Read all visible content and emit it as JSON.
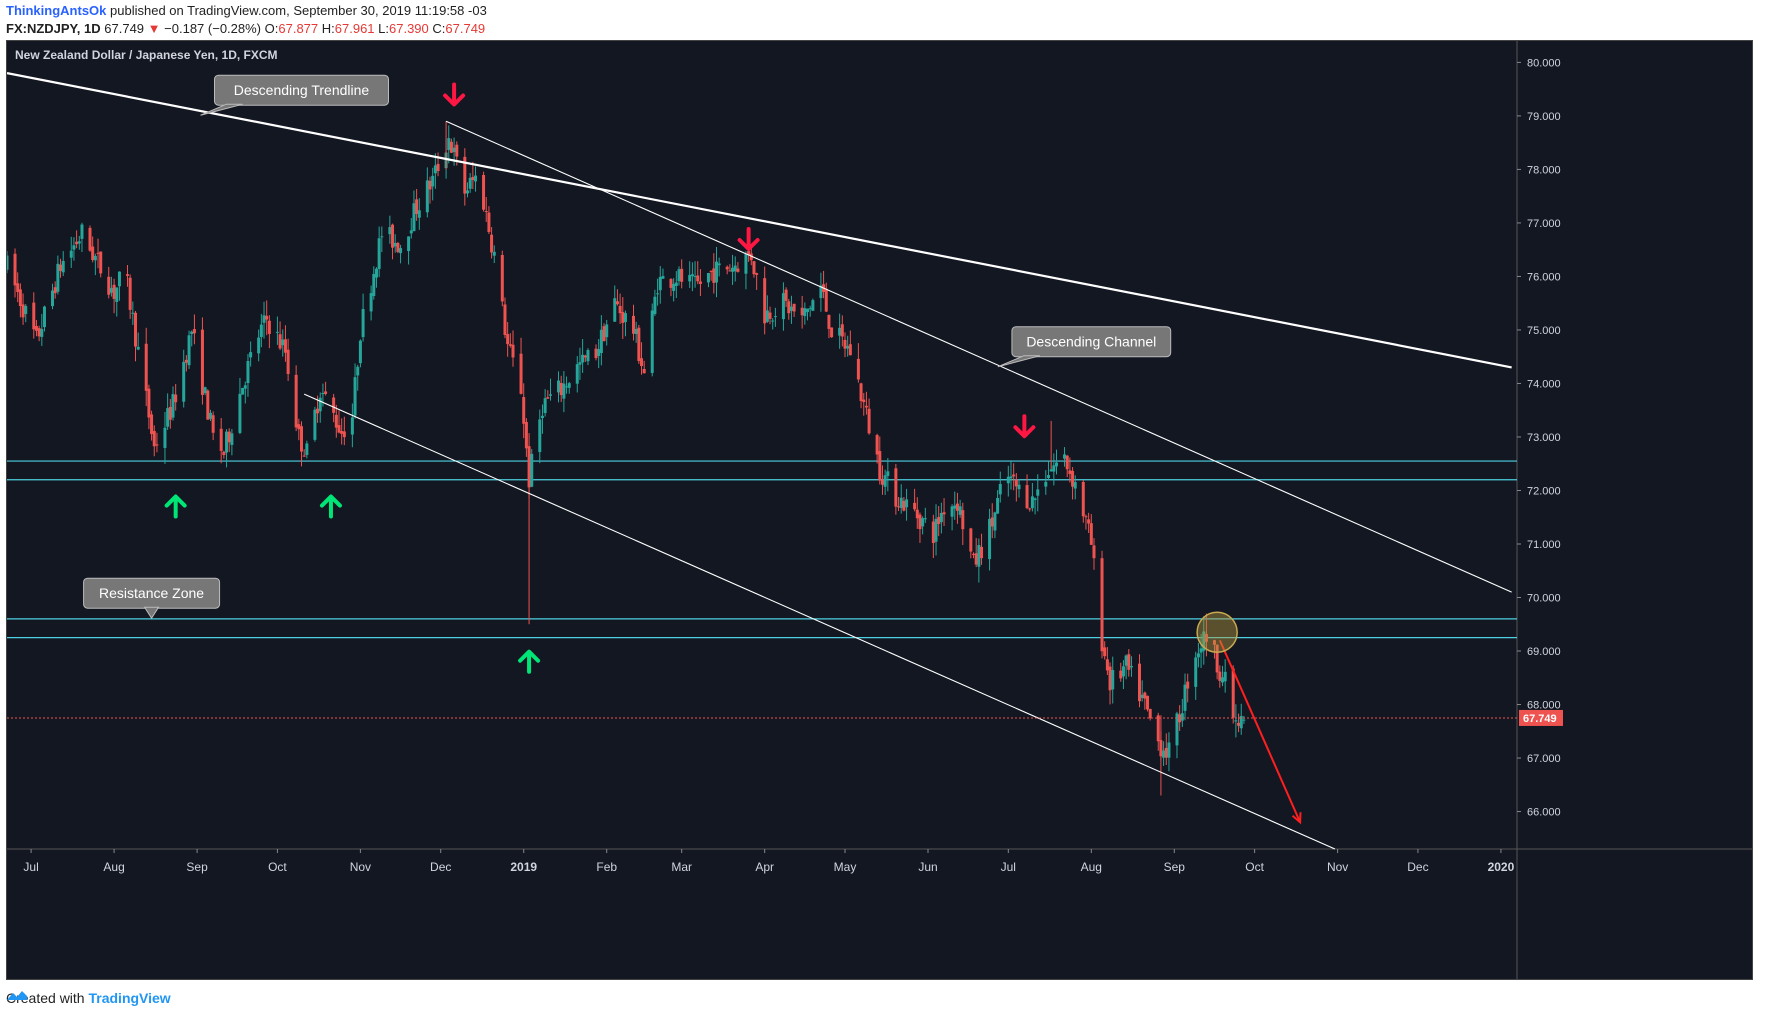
{
  "header": {
    "author": "ThinkingAntsOk",
    "published": "published on TradingView.com, September 30, 2019 11:19:58 -03",
    "symbol": "FX:NZDJPY, 1D",
    "last": "67.749",
    "change_arrow": "▼",
    "change": "−0.187 (−0.28%)",
    "o_label": "O:",
    "o": "67.877",
    "h_label": "H:",
    "h": "67.961",
    "l_label": "L:",
    "l": "67.390",
    "c_label": "C:",
    "c": "67.749"
  },
  "footer": {
    "created": "Created with",
    "brand": "TradingView",
    "logo_icon": "tradingview-logo-icon"
  },
  "colors": {
    "bg": "#131722",
    "up": "#26a69a",
    "down": "#ef5350",
    "zone": "#4dd0e1",
    "arrow_up": "#00e676",
    "arrow_down": "#ff1744",
    "price_tag": "#ef5350"
  },
  "chart_data": {
    "type": "candlestick",
    "title": "New Zealand Dollar / Japanese Yen, 1D, FXCM",
    "xlabel": "",
    "ylabel": "",
    "ylim": [
      65.3,
      80.4
    ],
    "xlim": [
      "2018-06-22",
      "2020-01-07"
    ],
    "y_ticks": [
      "80.000",
      "79.000",
      "78.000",
      "77.000",
      "76.000",
      "75.000",
      "74.000",
      "73.000",
      "72.000",
      "71.000",
      "70.000",
      "69.000",
      "68.000",
      "67.000",
      "66.000"
    ],
    "x_ticks": [
      {
        "date": "2018-07-01",
        "label": "Jul"
      },
      {
        "date": "2018-08-01",
        "label": "Aug"
      },
      {
        "date": "2018-09-01",
        "label": "Sep"
      },
      {
        "date": "2018-10-01",
        "label": "Oct"
      },
      {
        "date": "2018-11-01",
        "label": "Nov"
      },
      {
        "date": "2018-12-01",
        "label": "Dec"
      },
      {
        "date": "2019-01-01",
        "label": "2019"
      },
      {
        "date": "2019-02-01",
        "label": "Feb"
      },
      {
        "date": "2019-03-01",
        "label": "Mar"
      },
      {
        "date": "2019-04-01",
        "label": "Apr"
      },
      {
        "date": "2019-05-01",
        "label": "May"
      },
      {
        "date": "2019-06-01",
        "label": "Jun"
      },
      {
        "date": "2019-07-01",
        "label": "Jul"
      },
      {
        "date": "2019-08-01",
        "label": "Aug"
      },
      {
        "date": "2019-09-01",
        "label": "Sep"
      },
      {
        "date": "2019-10-01",
        "label": "Oct"
      },
      {
        "date": "2019-11-01",
        "label": "Nov"
      },
      {
        "date": "2019-12-01",
        "label": "Dec"
      },
      {
        "date": "2020-01-01",
        "label": "2020"
      }
    ],
    "last_price": {
      "value": 67.749,
      "label": "67.749"
    },
    "price_path": [
      [
        "2018-06-22",
        76.2
      ],
      [
        "2018-07-03",
        74.8
      ],
      [
        "2018-07-12",
        76.2
      ],
      [
        "2018-07-20",
        76.8
      ],
      [
        "2018-08-01",
        75.7
      ],
      [
        "2018-08-05",
        76.1
      ],
      [
        "2018-08-16",
        72.8
      ],
      [
        "2018-08-23",
        73.6
      ],
      [
        "2018-08-30",
        75.0
      ],
      [
        "2018-09-07",
        73.0
      ],
      [
        "2018-09-11",
        72.7
      ],
      [
        "2018-09-18",
        74.0
      ],
      [
        "2018-09-24",
        74.9
      ],
      [
        "2018-09-27",
        75.2
      ],
      [
        "2018-10-04",
        74.6
      ],
      [
        "2018-10-09",
        73.0
      ],
      [
        "2018-10-12",
        72.7
      ],
      [
        "2018-10-17",
        73.9
      ],
      [
        "2018-10-25",
        73.1
      ],
      [
        "2018-10-29",
        73.4
      ],
      [
        "2018-11-01",
        75.0
      ],
      [
        "2018-11-09",
        76.8
      ],
      [
        "2018-11-16",
        76.6
      ],
      [
        "2018-11-22",
        77.3
      ],
      [
        "2018-11-28",
        77.8
      ],
      [
        "2018-12-04",
        78.6
      ],
      [
        "2018-12-10",
        77.6
      ],
      [
        "2018-12-15",
        77.9
      ],
      [
        "2018-12-21",
        76.4
      ],
      [
        "2018-12-26",
        74.7
      ],
      [
        "2018-12-31",
        73.9
      ],
      [
        "2019-01-03",
        72.2
      ],
      [
        "2019-01-08",
        73.6
      ],
      [
        "2019-01-15",
        73.9
      ],
      [
        "2019-01-21",
        74.3
      ],
      [
        "2019-01-28",
        74.6
      ],
      [
        "2019-02-04",
        75.5
      ],
      [
        "2019-02-11",
        75.0
      ],
      [
        "2019-02-15",
        74.2
      ],
      [
        "2019-02-20",
        75.9
      ],
      [
        "2019-02-27",
        76.0
      ],
      [
        "2019-03-06",
        75.8
      ],
      [
        "2019-03-13",
        76.1
      ],
      [
        "2019-03-20",
        76.2
      ],
      [
        "2019-03-27",
        76.4
      ],
      [
        "2019-04-01",
        75.3
      ],
      [
        "2019-04-08",
        75.5
      ],
      [
        "2019-04-15",
        75.2
      ],
      [
        "2019-04-22",
        75.8
      ],
      [
        "2019-04-26",
        75.0
      ],
      [
        "2019-05-03",
        74.6
      ],
      [
        "2019-05-08",
        73.6
      ],
      [
        "2019-05-14",
        72.4
      ],
      [
        "2019-05-20",
        71.9
      ],
      [
        "2019-05-27",
        71.6
      ],
      [
        "2019-06-03",
        71.2
      ],
      [
        "2019-06-07",
        71.7
      ],
      [
        "2019-06-12",
        71.8
      ],
      [
        "2019-06-18",
        70.6
      ],
      [
        "2019-06-25",
        71.4
      ],
      [
        "2019-06-30",
        72.3
      ],
      [
        "2019-07-05",
        72.0
      ],
      [
        "2019-07-10",
        71.8
      ],
      [
        "2019-07-16",
        72.4
      ],
      [
        "2019-07-22",
        72.6
      ],
      [
        "2019-07-27",
        72.0
      ],
      [
        "2019-08-01",
        71.0
      ],
      [
        "2019-08-05",
        69.2
      ],
      [
        "2019-08-08",
        68.4
      ],
      [
        "2019-08-14",
        68.7
      ],
      [
        "2019-08-20",
        68.1
      ],
      [
        "2019-08-26",
        67.3
      ],
      [
        "2019-08-30",
        67.1
      ],
      [
        "2019-09-03",
        67.8
      ],
      [
        "2019-09-08",
        68.9
      ],
      [
        "2019-09-13",
        69.3
      ],
      [
        "2019-09-17",
        68.8
      ],
      [
        "2019-09-20",
        68.4
      ],
      [
        "2019-09-24",
        67.6
      ],
      [
        "2019-09-30",
        67.749
      ]
    ],
    "spikes": [
      {
        "date": "2019-01-03",
        "high": 72.6,
        "low": 69.5
      },
      {
        "date": "2018-12-03",
        "high": 78.9,
        "low": 78.0
      },
      {
        "date": "2019-07-17",
        "high": 73.3,
        "low": 72.4
      },
      {
        "date": "2019-08-27",
        "high": 67.8,
        "low": 66.3
      },
      {
        "date": "2019-09-13",
        "high": 69.7,
        "low": 68.9
      }
    ],
    "support_zone": [
      72.2,
      72.55
    ],
    "resistance_zone": [
      69.25,
      69.6
    ],
    "trendline": [
      [
        "2018-06-22",
        79.8
      ],
      [
        "2020-01-05",
        74.3
      ]
    ],
    "channel_upper": [
      [
        "2018-12-03",
        78.9
      ],
      [
        "2020-01-05",
        70.1
      ]
    ],
    "channel_lower": [
      [
        "2018-10-11",
        73.8
      ],
      [
        "2019-10-31",
        65.3
      ]
    ],
    "projection": [
      [
        "2019-09-18",
        69.2
      ],
      [
        "2019-10-18",
        65.8
      ]
    ],
    "circle": {
      "date": "2019-09-17",
      "value": 69.35
    },
    "arrows_up": [
      {
        "date": "2018-08-24",
        "value": 71.7
      },
      {
        "date": "2018-10-21",
        "value": 71.7
      },
      {
        "date": "2019-01-03",
        "value": 68.8
      }
    ],
    "arrows_down": [
      {
        "date": "2018-12-06",
        "value": 79.4
      },
      {
        "date": "2019-03-26",
        "value": 76.7
      },
      {
        "date": "2019-07-07",
        "value": 73.2
      }
    ],
    "annotations": [
      {
        "text": "Descending Trendline",
        "date": "2018-10-10",
        "value": 79.2,
        "pointer": "bottom-left"
      },
      {
        "text": "Descending Channel",
        "date": "2019-08-01",
        "value": 74.5,
        "pointer": "bottom-left"
      },
      {
        "text": "Resistance Zone",
        "date": "2018-08-15",
        "value": 69.8,
        "pointer": "bottom"
      }
    ]
  }
}
